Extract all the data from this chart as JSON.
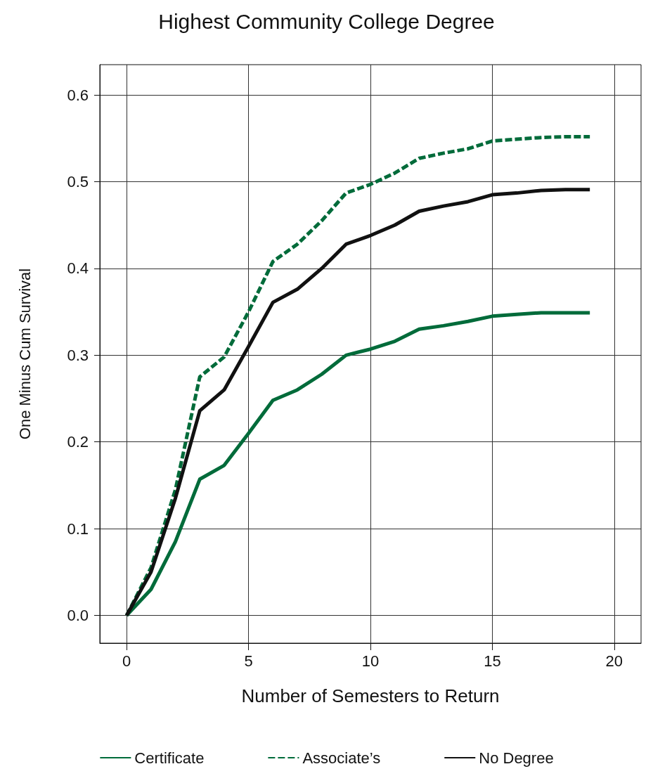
{
  "chart_data": {
    "type": "line",
    "title": "Highest Community College Degree",
    "xlabel": "Number of Semesters to Return",
    "ylabel": "One Minus Cum Survival",
    "x": [
      0,
      1,
      2,
      3,
      4,
      5,
      6,
      7,
      8,
      9,
      10,
      11,
      12,
      13,
      14,
      15,
      16,
      17,
      18,
      19
    ],
    "series": [
      {
        "name": "Certificate",
        "color": "#006b3a",
        "line_style": "solid",
        "values": [
          0,
          0.03,
          0.085,
          0.157,
          0.173,
          0.21,
          0.248,
          0.26,
          0.278,
          0.3,
          0.307,
          0.316,
          0.33,
          0.334,
          0.339,
          0.345,
          0.347,
          0.349,
          0.349,
          0.349
        ]
      },
      {
        "name": "Associate’s",
        "color": "#006b3a",
        "line_style": "dashed",
        "values": [
          0,
          0.055,
          0.145,
          0.275,
          0.298,
          0.35,
          0.408,
          0.428,
          0.455,
          0.487,
          0.497,
          0.51,
          0.527,
          0.533,
          0.538,
          0.547,
          0.549,
          0.551,
          0.552,
          0.552
        ]
      },
      {
        "name": "No Degree",
        "color": "#111111",
        "line_style": "solid",
        "values": [
          0,
          0.05,
          0.135,
          0.236,
          0.26,
          0.31,
          0.361,
          0.376,
          0.4,
          0.428,
          0.438,
          0.45,
          0.466,
          0.472,
          0.477,
          0.485,
          0.487,
          0.49,
          0.491,
          0.491
        ]
      }
    ],
    "xlim": [
      -1.1,
      21.1
    ],
    "xticks": [
      0,
      5,
      10,
      15,
      20
    ],
    "ylim": [
      -0.032,
      0.635
    ],
    "yticks": [
      {
        "value": 0,
        "label": "0.0"
      },
      0.1,
      0.2,
      0.3,
      0.4,
      0.5,
      0.6
    ],
    "grid": true,
    "legend": "bottom",
    "marker": "none"
  }
}
